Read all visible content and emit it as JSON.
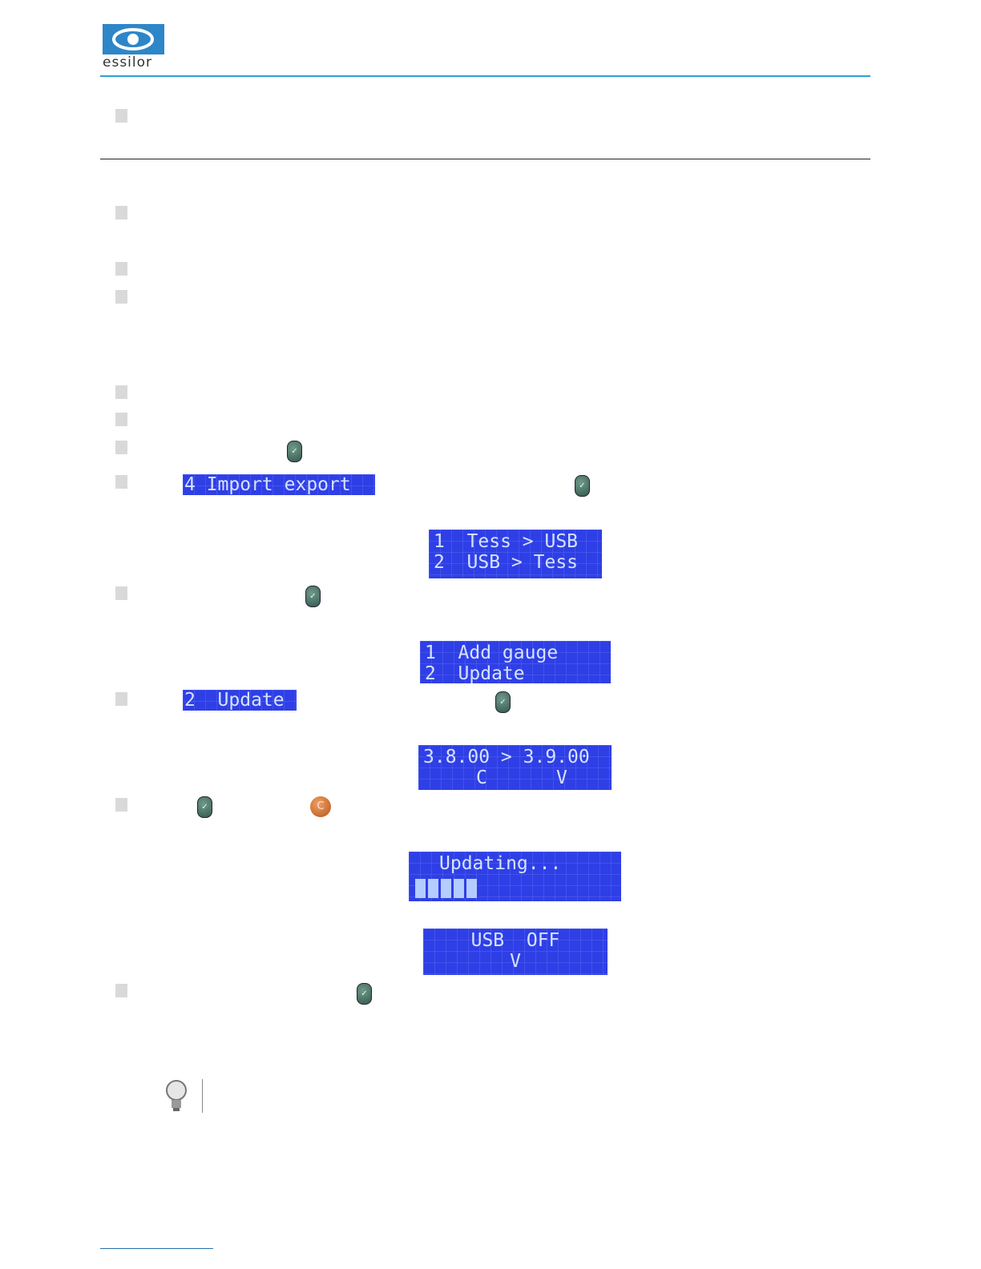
{
  "header": {
    "logo": "essilor"
  },
  "screens": {
    "import_export": "4 Import export",
    "transfer": [
      "1  Tess > USB",
      "2  USB > Tess"
    ],
    "gauge": [
      "1  Add gauge",
      "2  Update"
    ],
    "update_selected": "2  Update",
    "version": {
      "line": "3.8.00 > 3.9.00",
      "cancel": "C",
      "validate": "V"
    },
    "updating": "Updating...",
    "usb_off": {
      "line": "USB  OFF",
      "validate": "V"
    }
  },
  "buttons": {
    "cancel": "C"
  }
}
